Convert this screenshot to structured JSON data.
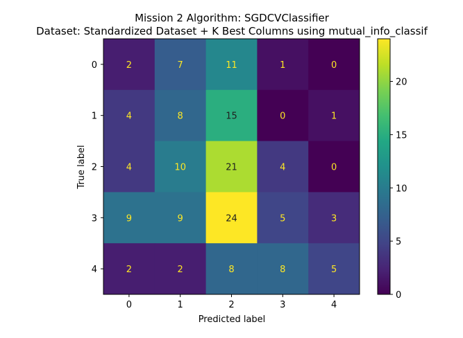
{
  "chart_data": {
    "type": "heatmap",
    "title": "Mission 2 Algorithm: SGDCVClassifier",
    "subtitle": "Dataset: Standardized Dataset + K Best Columns using mutual_info_classif",
    "xlabel": "Predicted label",
    "ylabel": "True label",
    "x_categories": [
      "0",
      "1",
      "2",
      "3",
      "4"
    ],
    "y_categories": [
      "0",
      "1",
      "2",
      "3",
      "4"
    ],
    "matrix": [
      [
        2,
        7,
        11,
        1,
        0
      ],
      [
        4,
        8,
        15,
        0,
        1
      ],
      [
        4,
        10,
        21,
        4,
        0
      ],
      [
        9,
        9,
        24,
        5,
        3
      ],
      [
        2,
        2,
        8,
        8,
        5
      ]
    ],
    "colormap": "viridis",
    "vmin": 0,
    "vmax": 24,
    "colorbar_ticks": [
      "0",
      "5",
      "10",
      "15",
      "20"
    ],
    "colorbar_tick_values": [
      0,
      5,
      10,
      15,
      20
    ],
    "grid": false
  }
}
